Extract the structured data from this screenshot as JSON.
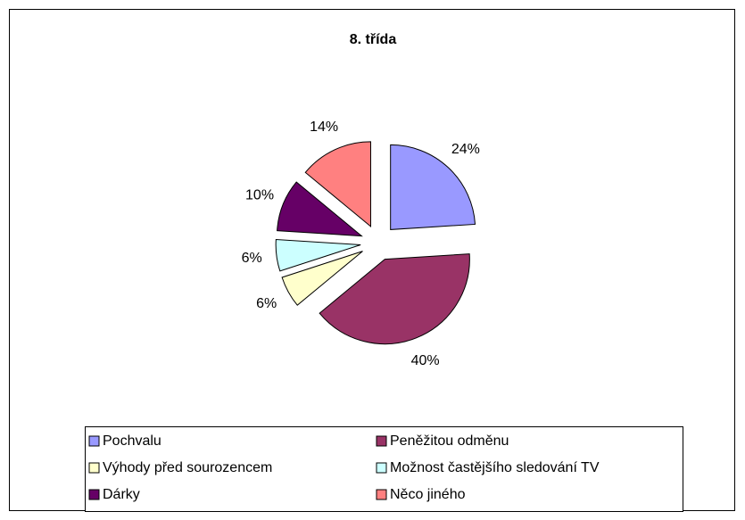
{
  "chart_data": {
    "type": "pie",
    "title": "8. třída",
    "categories": [
      "Pochvalu",
      "Peněžitou odměnu",
      "Výhody před sourozencem",
      "Možnost častějšího sledování TV",
      "Dárky",
      "Něco jiného"
    ],
    "values": [
      24,
      40,
      6,
      6,
      10,
      14
    ],
    "value_labels": [
      "24%",
      "40%",
      "6%",
      "6%",
      "10%",
      "14%"
    ],
    "colors": [
      "#9999ff",
      "#993366",
      "#ffffcc",
      "#ccffff",
      "#660066",
      "#ff8080"
    ],
    "exploded": true,
    "legend": "bottom"
  }
}
